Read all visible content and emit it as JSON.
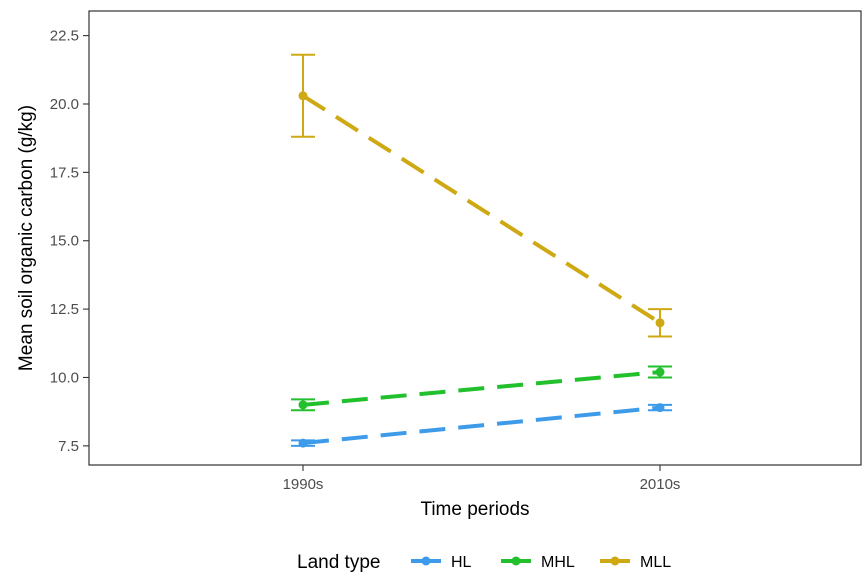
{
  "chart_data": {
    "type": "line",
    "xlabel": "Time periods",
    "ylabel": "Mean soil organic carbon (g/kg)",
    "categories": [
      "1990s",
      "2010s"
    ],
    "ylim": [
      6.8,
      23.4
    ],
    "yticks": [
      "7.5",
      "10.0",
      "12.5",
      "15.0",
      "17.5",
      "20.0",
      "22.5"
    ],
    "grid": false,
    "legend": {
      "title": "Land type",
      "position": "bottom"
    },
    "series": [
      {
        "name": "HL",
        "color": "#3d9bea",
        "values": [
          7.6,
          8.9
        ],
        "err_low": [
          7.5,
          8.8
        ],
        "err_high": [
          7.7,
          9.0
        ]
      },
      {
        "name": "MHL",
        "color": "#22c02c",
        "values": [
          9.0,
          10.2
        ],
        "err_low": [
          8.8,
          10.0
        ],
        "err_high": [
          9.2,
          10.4
        ]
      },
      {
        "name": "MLL",
        "color": "#cfa913",
        "values": [
          20.3,
          12.0
        ],
        "err_low": [
          18.8,
          11.5
        ],
        "err_high": [
          21.8,
          12.5
        ]
      }
    ]
  }
}
